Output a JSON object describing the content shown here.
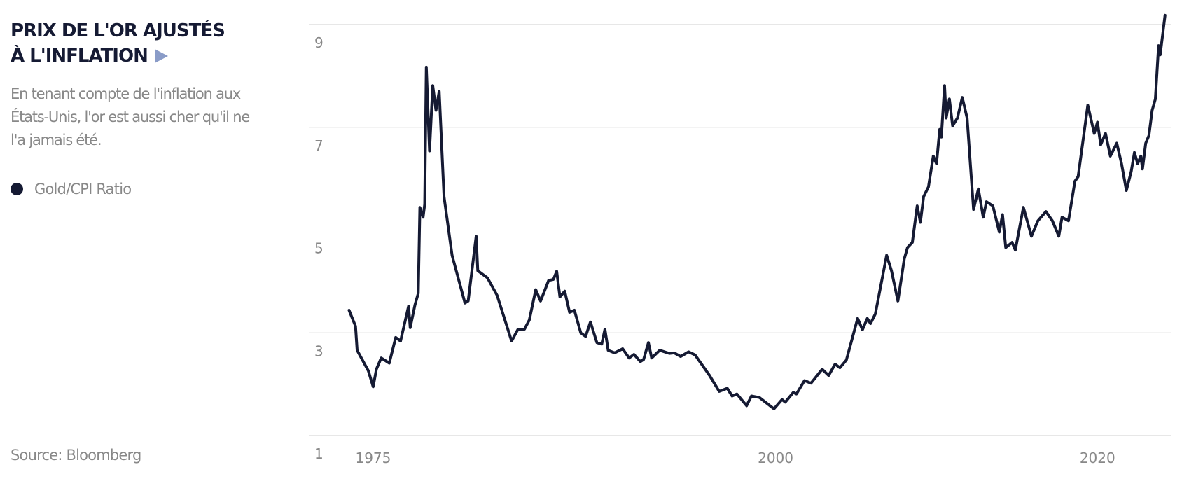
{
  "chart_data": {
    "type": "line",
    "title": "PRIX DE L'OR AJUSTÉS À L'INFLATION",
    "subtitle": "En tenant compte de l'inflation aux États-Unis, l'or est aussi cher qu'il ne l'a jamais été.",
    "source": "Source: Bloomberg",
    "x": [
      1973.5,
      1973.9,
      1974.0,
      1974.7,
      1975.0,
      1975.2,
      1975.5,
      1976.0,
      1976.4,
      1976.7,
      1977.2,
      1977.3,
      1977.6,
      1977.8,
      1977.9,
      1978.1,
      1978.2,
      1978.3,
      1978.5,
      1978.7,
      1978.9,
      1979.1,
      1979.4,
      1979.9,
      1980.7,
      1980.9,
      1981.4,
      1981.5,
      1982.1,
      1982.7,
      1983.6,
      1984.0,
      1984.4,
      1984.7,
      1985.1,
      1985.4,
      1985.9,
      1986.2,
      1986.4,
      1986.6,
      1986.9,
      1987.2,
      1987.5,
      1987.9,
      1988.2,
      1988.5,
      1988.9,
      1989.2,
      1989.4,
      1989.6,
      1990.0,
      1990.5,
      1990.9,
      1991.2,
      1991.6,
      1991.8,
      1992.1,
      1992.3,
      1992.8,
      1993.4,
      1993.7,
      1994.1,
      1994.6,
      1995.0,
      1995.9,
      1996.5,
      1997.0,
      1997.3,
      1997.6,
      1998.2,
      1998.5,
      1999.0,
      1999.9,
      2000.4,
      2000.6,
      2001.1,
      2001.3,
      2001.8,
      2002.2,
      2002.9,
      2003.3,
      2003.7,
      2004.0,
      2004.4,
      2005.1,
      2005.4,
      2005.7,
      2005.9,
      2006.2,
      2006.9,
      2007.2,
      2007.6,
      2008.0,
      2008.2,
      2008.5,
      2008.8,
      2009.0,
      2009.2,
      2009.5,
      2009.8,
      2010.0,
      2010.2,
      2010.3,
      2010.5,
      2010.6,
      2010.8,
      2011.0,
      2011.3,
      2011.6,
      2011.9,
      2012.3,
      2012.6,
      2012.9,
      2013.1,
      2013.5,
      2013.9,
      2014.1,
      2014.3,
      2014.7,
      2014.9,
      2015.4,
      2015.9,
      2016.3,
      2016.8,
      2017.2,
      2017.6,
      2017.8,
      2018.2,
      2018.6,
      2018.8,
      2019.4,
      2019.8,
      2020.0,
      2020.2,
      2020.5,
      2020.8,
      2021.2,
      2021.5,
      2021.8,
      2022.1,
      2022.3,
      2022.5,
      2022.7,
      2022.8,
      2023.0,
      2023.2,
      2023.4,
      2023.6,
      2023.8,
      2023.9,
      2024.2
    ],
    "series": [
      {
        "name": "Gold/CPI Ratio",
        "color": "#151a33",
        "values": [
          3.44,
          3.13,
          2.66,
          2.26,
          1.95,
          2.29,
          2.51,
          2.41,
          2.91,
          2.84,
          3.52,
          3.1,
          3.55,
          3.77,
          5.44,
          5.25,
          5.5,
          8.17,
          6.54,
          7.81,
          7.33,
          7.7,
          5.65,
          4.51,
          3.58,
          3.62,
          4.88,
          4.21,
          4.07,
          3.73,
          2.84,
          3.07,
          3.07,
          3.25,
          3.84,
          3.62,
          4.02,
          4.04,
          4.2,
          3.7,
          3.81,
          3.4,
          3.44,
          3.0,
          2.93,
          3.21,
          2.81,
          2.78,
          3.07,
          2.66,
          2.61,
          2.69,
          2.51,
          2.58,
          2.44,
          2.48,
          2.81,
          2.51,
          2.66,
          2.6,
          2.61,
          2.54,
          2.63,
          2.57,
          2.17,
          1.86,
          1.92,
          1.77,
          1.81,
          1.58,
          1.77,
          1.74,
          1.52,
          1.7,
          1.65,
          1.84,
          1.81,
          2.07,
          2.02,
          2.29,
          2.17,
          2.39,
          2.32,
          2.47,
          3.28,
          3.06,
          3.28,
          3.18,
          3.37,
          4.51,
          4.21,
          3.62,
          4.44,
          4.66,
          4.76,
          5.47,
          5.15,
          5.65,
          5.84,
          6.44,
          6.29,
          6.96,
          6.81,
          7.81,
          7.18,
          7.55,
          7.03,
          7.18,
          7.58,
          7.18,
          5.4,
          5.8,
          5.25,
          5.55,
          5.47,
          4.96,
          5.3,
          4.66,
          4.76,
          4.61,
          5.44,
          4.88,
          5.18,
          5.36,
          5.18,
          4.88,
          5.25,
          5.18,
          5.95,
          6.04,
          7.43,
          6.88,
          7.1,
          6.66,
          6.88,
          6.44,
          6.69,
          6.29,
          5.77,
          6.14,
          6.51,
          6.29,
          6.44,
          6.19,
          6.69,
          6.84,
          7.33,
          7.55,
          8.59,
          8.41,
          9.18
        ]
      }
    ],
    "xlim": [
      1971,
      2024.6
    ],
    "ylim": [
      1,
      9
    ],
    "xticks": [
      1975,
      2000,
      2020
    ],
    "yticks": [
      1,
      3,
      5,
      7,
      9
    ],
    "grid": true
  }
}
